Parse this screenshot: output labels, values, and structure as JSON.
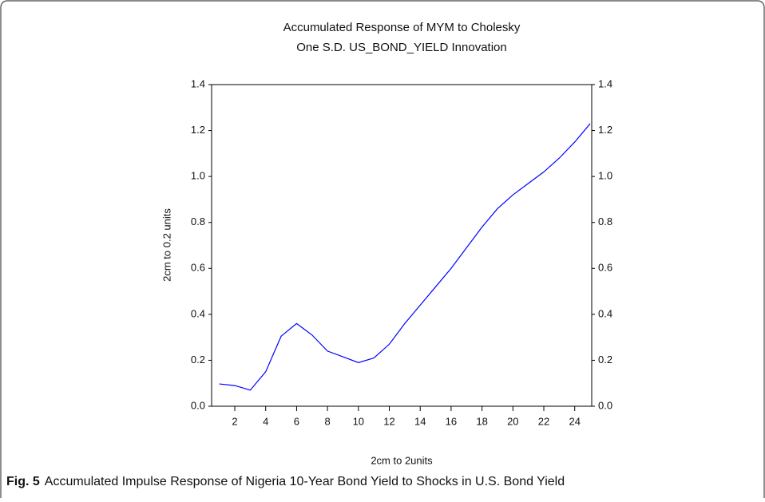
{
  "chart_data": {
    "type": "line",
    "title": "Accumulated Response of MYM to Cholesky",
    "subtitle": "One S.D. US_BOND_YIELD Innovation",
    "x_label": "2cm to 2units",
    "y_label": "2cm to 0.2 units",
    "x": [
      1,
      2,
      3,
      4,
      5,
      6,
      7,
      8,
      9,
      10,
      11,
      12,
      13,
      14,
      15,
      16,
      17,
      18,
      19,
      20,
      21,
      22,
      23,
      24,
      25
    ],
    "series": [
      {
        "color": "#0000ff",
        "values": [
          0.097,
          0.09,
          0.07,
          0.15,
          0.305,
          0.36,
          0.31,
          0.24,
          0.215,
          0.19,
          0.21,
          0.27,
          0.36,
          0.44,
          0.52,
          0.6,
          0.69,
          0.78,
          0.86,
          0.92,
          0.97,
          1.02,
          1.08,
          1.15,
          1.23
        ]
      }
    ],
    "xlim": [
      0.5,
      25.1
    ],
    "xticks": [
      2,
      4,
      6,
      8,
      10,
      12,
      14,
      16,
      18,
      20,
      22,
      24
    ],
    "ylim": [
      0,
      1.4
    ],
    "yticks": [
      {
        "value": 0,
        "label": "0.0"
      },
      0.2,
      0.4,
      0.6,
      0.8,
      {
        "value": 1,
        "label": "1.0"
      },
      1.2,
      1.4
    ],
    "right_axis": true
  },
  "caption": {
    "label": "Fig. 5",
    "text": "Accumulated Impulse Response of Nigeria 10-Year Bond Yield to Shocks in U.S. Bond Yield"
  }
}
